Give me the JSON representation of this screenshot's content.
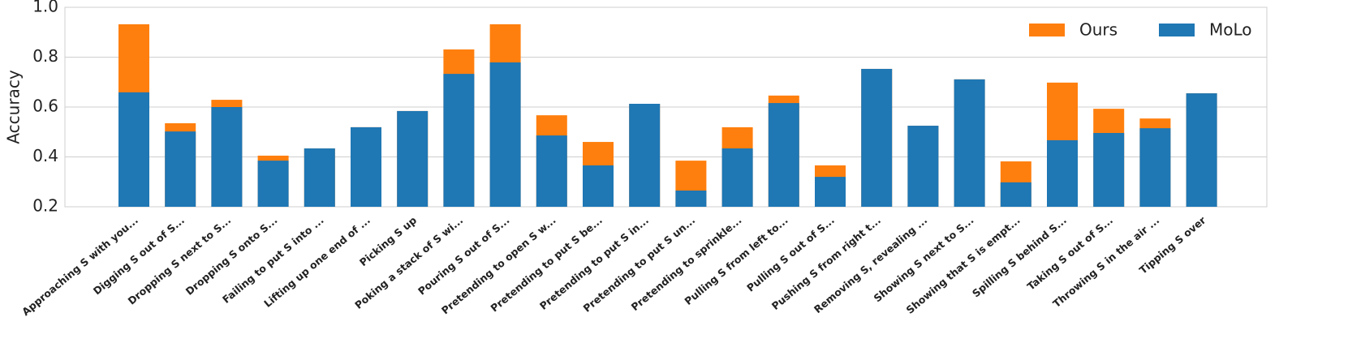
{
  "chart_data": {
    "type": "bar",
    "y_label": "Accuracy",
    "categories": [
      "Approaching S with you...",
      "Digging S out of S...",
      "Dropping S next to S...",
      "Dropping S onto S...",
      "Failing to put S into ...",
      "Lifting up one end of ...",
      "Picking S up",
      "Poking a stack of S wi...",
      "Pouring S out of S...",
      "Pretending to open S w...",
      "Pretending to put S be...",
      "Pretending to put S in...",
      "Pretending to put S un...",
      "Pretending to sprinkle...",
      "Pulling S from left to...",
      "Pulling S out of S...",
      "Pushing S from right t...",
      "Removing S, revealing ...",
      "Showing S next to S...",
      "Showing that S is empt...",
      "Spilling S behind S...",
      "Taking S out of S...",
      "Throwing S in the air ...",
      "Tipping S over"
    ],
    "series": [
      {
        "name": "Ours",
        "color": "#ff7f0e",
        "values": [
          0.932,
          0.535,
          0.629,
          0.405,
          0.434,
          0.519,
          0.584,
          0.831,
          0.932,
          0.567,
          0.46,
          0.613,
          0.385,
          0.519,
          0.646,
          0.366,
          0.753,
          0.525,
          0.711,
          0.382,
          0.698,
          0.593,
          0.554,
          0.655
        ]
      },
      {
        "name": "MoLo",
        "color": "#1f77b4",
        "values": [
          0.659,
          0.502,
          0.6,
          0.385,
          0.434,
          0.519,
          0.584,
          0.733,
          0.779,
          0.486,
          0.366,
          0.613,
          0.265,
          0.434,
          0.616,
          0.32,
          0.753,
          0.525,
          0.711,
          0.298,
          0.467,
          0.496,
          0.515,
          0.655
        ]
      }
    ],
    "ylim": [
      0.2,
      1.0
    ],
    "yticks": [
      0.2,
      0.4,
      0.6,
      0.8,
      {
        "value": 1.0,
        "label": "1.0"
      }
    ],
    "grid": true,
    "legend": "upper right"
  }
}
